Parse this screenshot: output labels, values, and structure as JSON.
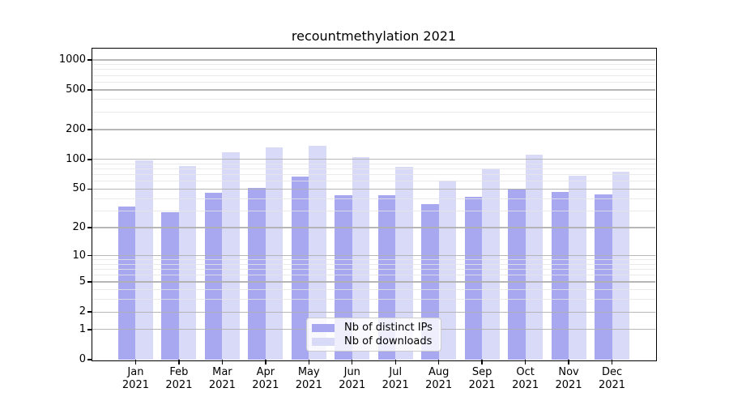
{
  "chart_data": {
    "type": "bar",
    "title": "recountmethylation 2021",
    "categories": [
      "Jan\n2021",
      "Feb\n2021",
      "Mar\n2021",
      "Apr\n2021",
      "May\n2021",
      "Jun\n2021",
      "Jul\n2021",
      "Aug\n2021",
      "Sep\n2021",
      "Oct\n2021",
      "Nov\n2021",
      "Dec\n2021"
    ],
    "series": [
      {
        "name": "Nb of distinct IPs",
        "color": "#a8a8f0",
        "values": [
          33,
          29,
          46,
          51,
          67,
          43,
          43,
          35,
          42,
          50,
          47,
          44
        ]
      },
      {
        "name": "Nb of downloads",
        "color": "#d9d9f8",
        "values": [
          97,
          86,
          118,
          133,
          137,
          105,
          84,
          61,
          81,
          112,
          68,
          75
        ]
      }
    ],
    "y_axis": {
      "scale": "log1p",
      "ticks": [
        0,
        1,
        2,
        5,
        10,
        20,
        50,
        100,
        200,
        500,
        1000
      ],
      "top_value": 1320
    },
    "x_axis": {
      "tick_label_lines": 2
    },
    "grid": {
      "major": true,
      "minor": true
    },
    "legend": {
      "position": "lower center"
    }
  }
}
